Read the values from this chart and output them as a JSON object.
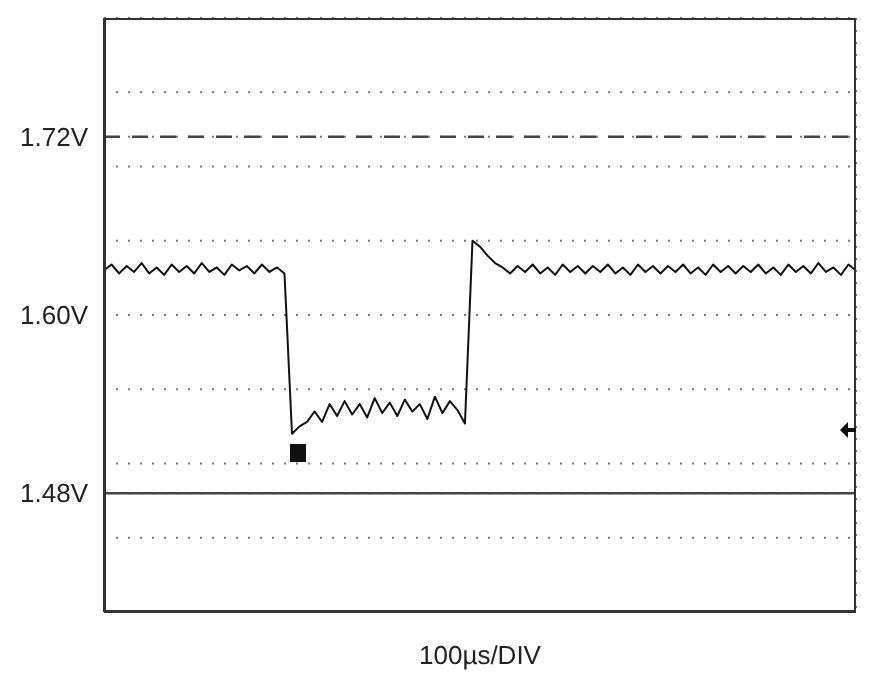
{
  "chart_data": {
    "type": "line",
    "xlabel": "100µs/DIV",
    "categories": [
      null,
      null,
      null,
      null,
      null,
      null,
      null,
      null,
      null,
      null,
      null,
      null,
      null,
      null,
      null,
      null,
      null,
      null,
      null,
      null,
      null,
      null,
      null,
      null,
      null,
      null,
      null,
      null,
      null,
      null,
      null,
      null,
      null,
      null,
      null,
      null,
      null,
      null,
      null,
      null,
      null,
      null,
      null,
      null,
      null,
      null,
      null,
      null,
      null,
      null,
      null,
      null,
      null,
      null,
      null,
      null,
      null,
      null,
      null,
      null,
      null,
      null,
      null,
      null,
      null,
      null,
      null,
      null,
      null,
      null,
      null,
      null,
      null,
      null,
      null,
      null,
      null,
      null,
      null,
      null,
      null,
      null,
      null,
      null,
      null,
      null,
      null,
      null,
      null,
      null,
      null,
      null,
      null,
      null,
      null,
      null,
      null,
      null,
      null,
      null,
      null
    ],
    "series": [
      {
        "color": "#111111",
        "values": [
          1.63,
          1.634,
          1.628,
          1.633,
          1.629,
          1.635,
          1.628,
          1.632,
          1.627,
          1.634,
          1.629,
          1.633,
          1.628,
          1.635,
          1.629,
          1.632,
          1.627,
          1.634,
          1.63,
          1.633,
          1.628,
          1.634,
          1.629,
          1.632,
          1.628,
          1.52,
          1.525,
          1.528,
          1.535,
          1.528,
          1.54,
          1.532,
          1.542,
          1.533,
          1.54,
          1.531,
          1.544,
          1.534,
          1.541,
          1.532,
          1.543,
          1.535,
          1.54,
          1.53,
          1.545,
          1.534,
          1.542,
          1.536,
          1.527,
          1.65,
          1.646,
          1.64,
          1.635,
          1.632,
          1.628,
          1.633,
          1.629,
          1.634,
          1.628,
          1.632,
          1.627,
          1.634,
          1.629,
          1.633,
          1.628,
          1.633,
          1.629,
          1.634,
          1.628,
          1.632,
          1.627,
          1.634,
          1.629,
          1.633,
          1.628,
          1.633,
          1.629,
          1.634,
          1.628,
          1.632,
          1.627,
          1.634,
          1.629,
          1.633,
          1.628,
          1.633,
          1.629,
          1.634,
          1.628,
          1.632,
          1.627,
          1.634,
          1.629,
          1.633,
          1.628,
          1.635,
          1.629,
          1.632,
          1.627,
          1.634,
          1.63
        ]
      }
    ],
    "ylim": [
      1.4,
      1.8
    ],
    "yticks": [
      {
        "value": 1.4,
        "label": null
      },
      {
        "value": 1.45,
        "label": null
      },
      {
        "value": 1.48,
        "label": "1.48V"
      },
      {
        "value": 1.5,
        "label": null
      },
      {
        "value": 1.55,
        "label": null
      },
      {
        "value": 1.6,
        "label": "1.60V"
      },
      {
        "value": 1.65,
        "label": null
      },
      {
        "value": 1.7,
        "label": null
      },
      {
        "value": 1.72,
        "label": "1.72V"
      },
      {
        "value": 1.75,
        "label": null
      },
      {
        "value": 1.8,
        "label": null
      }
    ],
    "tick_labels": "y",
    "grid": true,
    "marker": "none",
    "line_style": "solid",
    "ref_lines": [
      {
        "axis": "y",
        "value": 1.72,
        "color": "#444444",
        "line_style": "dashed"
      },
      {
        "axis": "y",
        "value": 1.48,
        "color": "#444444",
        "line_style": "solid"
      }
    ]
  }
}
